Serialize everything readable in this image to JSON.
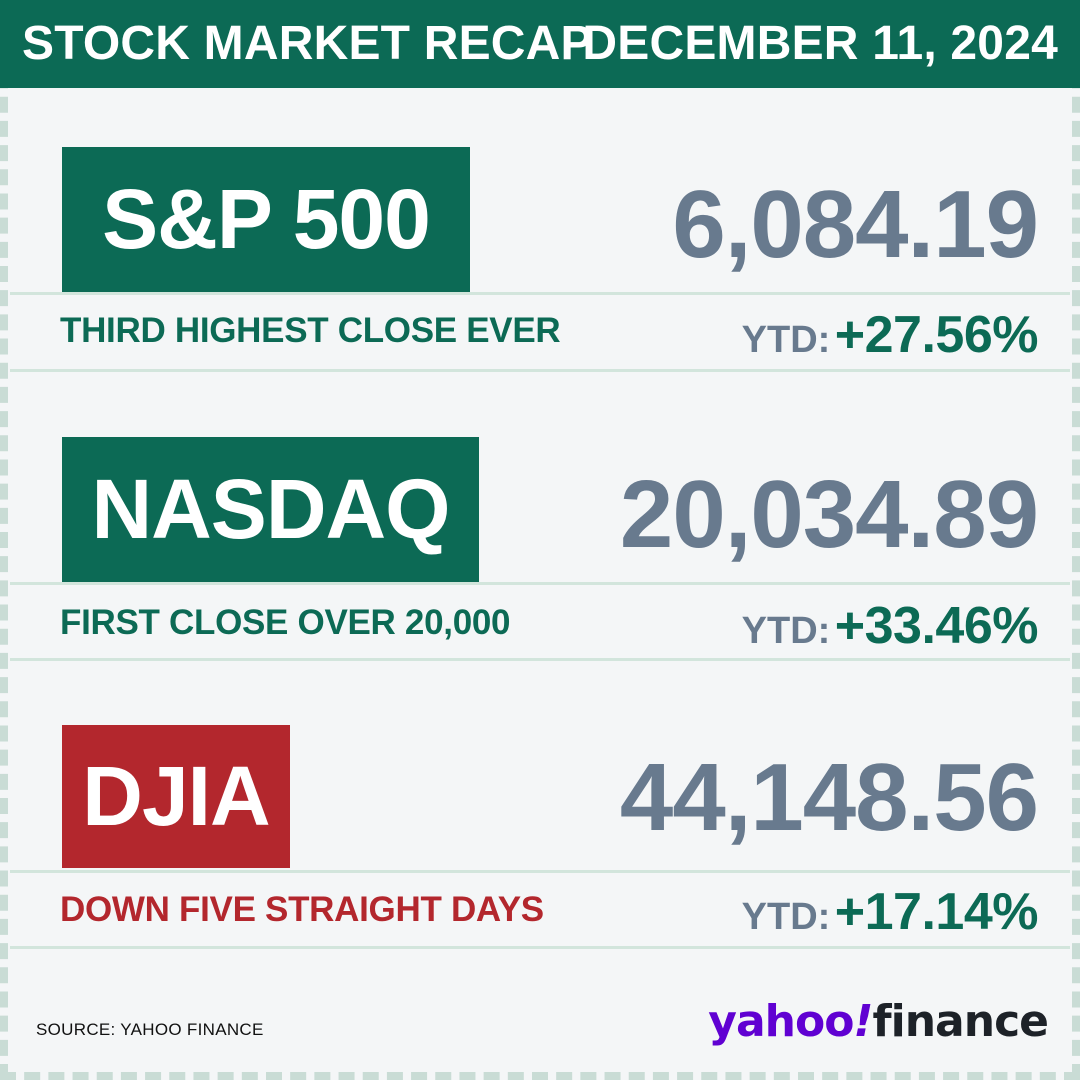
{
  "header": {
    "title": "STOCK MARKET RECAP",
    "date": "DECEMBER 11, 2024"
  },
  "indices": [
    {
      "name": "S&P 500",
      "value": "6,084.19",
      "note": "THIRD HIGHEST CLOSE EVER",
      "ytd_label": "YTD:",
      "ytd_change": "+27.56%",
      "badge_color": "#0c6a55"
    },
    {
      "name": "NASDAQ",
      "value": "20,034.89",
      "note": "FIRST CLOSE OVER 20,000",
      "ytd_label": "YTD:",
      "ytd_change": "+33.46%",
      "badge_color": "#0c6a55"
    },
    {
      "name": "DJIA",
      "value": "44,148.56",
      "note": "DOWN FIVE STRAIGHT DAYS",
      "ytd_label": "YTD:",
      "ytd_change": "+17.14%",
      "badge_color": "#b3272d"
    }
  ],
  "footer": {
    "source": "SOURCE: YAHOO FINANCE",
    "logo_yahoo": "yahoo",
    "logo_bang": "!",
    "logo_finance": "finance"
  },
  "colors": {
    "brand_green": "#0c6a55",
    "alert_red": "#b3272d",
    "value_gray": "#687a8e",
    "yahoo_purple": "#6001d2"
  }
}
